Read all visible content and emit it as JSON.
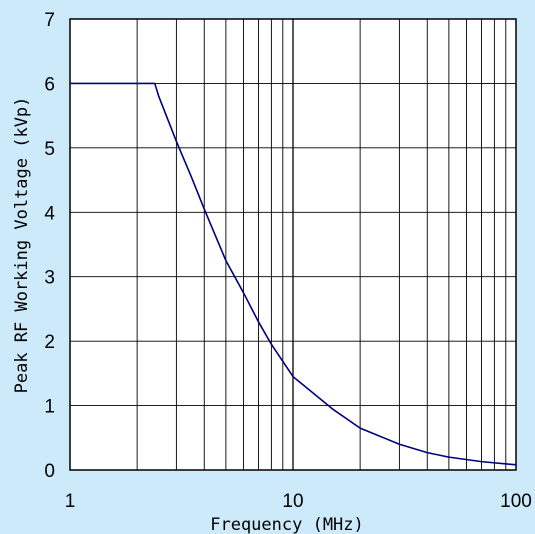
{
  "chart_data": {
    "type": "line",
    "title": "",
    "xlabel": "Frequency  (MHz)",
    "ylabel": "Peak RF Working Voltage (kVp)",
    "xscale": "log",
    "xlim": [
      1,
      100
    ],
    "ylim": [
      0,
      7
    ],
    "grid": true,
    "legend": "none",
    "x_tick_labels": [
      "1",
      "10",
      "100"
    ],
    "y_tick_labels": [
      "0",
      "1",
      "2",
      "3",
      "4",
      "5",
      "6",
      "7"
    ],
    "series": [
      {
        "color": "#000080",
        "x": [
          1,
          2.4,
          2.5,
          3,
          3.5,
          4,
          5,
          6,
          7,
          8,
          10,
          15,
          20,
          30,
          40,
          50,
          70,
          100
        ],
        "y": [
          6,
          6,
          5.8,
          5.1,
          4.55,
          4.05,
          3.25,
          2.75,
          2.3,
          1.95,
          1.45,
          0.95,
          0.65,
          0.4,
          0.27,
          0.2,
          0.13,
          0.08
        ]
      }
    ]
  },
  "colors": {
    "background": "#cdeafb",
    "plot_area": "#ffffff",
    "grid": "#000000",
    "line": "#000080"
  }
}
